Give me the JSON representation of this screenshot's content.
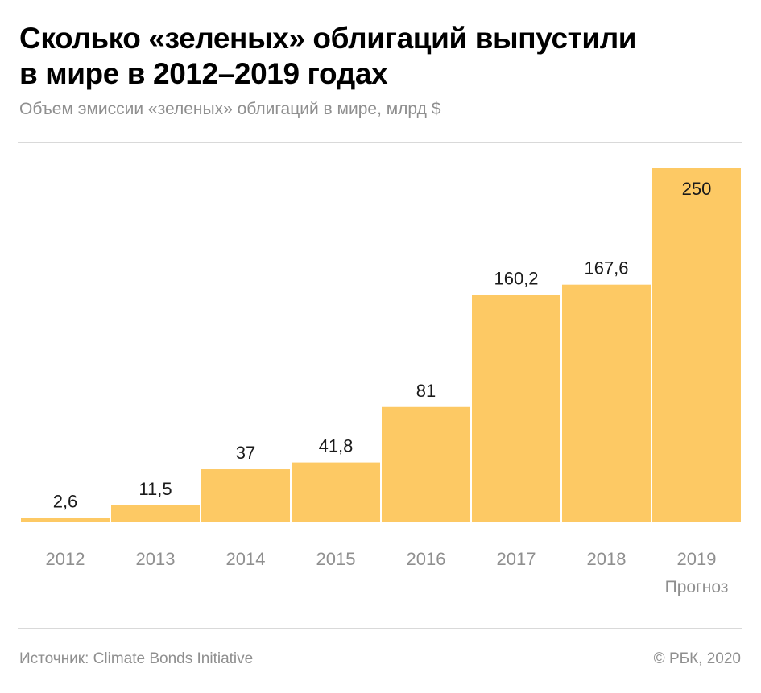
{
  "header": {
    "title_line1": "Сколько «зеленых» облигаций выпустили",
    "title_line2": "в мире в 2012–2019 годах",
    "subtitle": "Объем эмиссии «зеленых» облигаций в мире, млрд $"
  },
  "chart_data": {
    "type": "bar",
    "categories": [
      "2012",
      "2013",
      "2014",
      "2015",
      "2016",
      "2017",
      "2018",
      "2019"
    ],
    "category_notes": [
      "",
      "",
      "",
      "",
      "",
      "",
      "",
      "Прогноз"
    ],
    "values": [
      2.6,
      11.5,
      37,
      41.8,
      81,
      160.2,
      167.6,
      250
    ],
    "value_labels": [
      "2,6",
      "11,5",
      "37",
      "41,8",
      "81",
      "160,2",
      "167,6",
      "250"
    ],
    "ylim": [
      0,
      250
    ],
    "grid": false,
    "bar_color": "#fdc964"
  },
  "footer": {
    "source": "Источник: Climate Bonds Initiative",
    "copyright": "© РБК, 2020"
  }
}
